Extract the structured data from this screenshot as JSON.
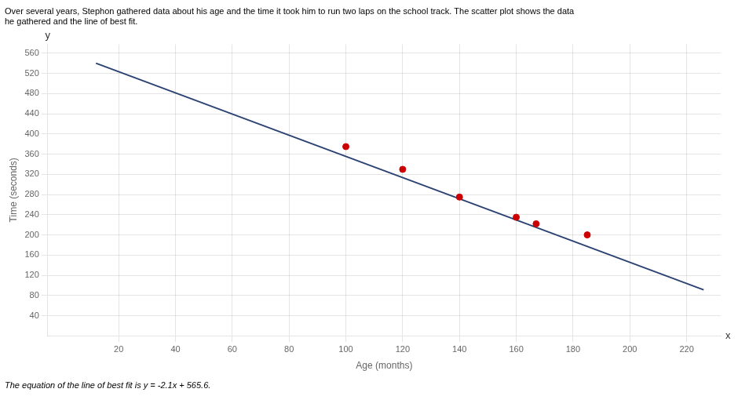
{
  "chart_data": {
    "type": "scatter",
    "title": [
      "Over several years, Stephon gathered data about his age and the time it took him to run two laps on the school track. The scatter plot shows the data",
      "he gathered and the line of best fit."
    ],
    "annotations": [
      {
        "text": "The equation of the line of best fit is y = -2.1x + 565.6."
      },
      {
        "text": "y",
        "axis": "y"
      },
      {
        "text": "x",
        "axis": "x"
      }
    ],
    "xlabel": "Age (months)",
    "ylabel": "Time (seconds)",
    "series": [
      {
        "type": "scatter",
        "color": "#cc0000",
        "marker": "circle",
        "x": [
          100,
          120,
          140,
          160,
          167,
          185
        ],
        "values": [
          375,
          330,
          275,
          235,
          222,
          200
        ]
      },
      {
        "type": "line",
        "color": "#2c4272",
        "line_style": "solid",
        "x": [
          12,
          226
        ],
        "values": [
          540.4,
          91
        ]
      }
    ],
    "xlim": [
      -5,
      232
    ],
    "ylim": [
      0,
      578
    ],
    "xticks": [
      20,
      40,
      60,
      80,
      100,
      120,
      140,
      160,
      180,
      200,
      220
    ],
    "yticks": [
      40,
      80,
      120,
      160,
      200,
      240,
      280,
      320,
      360,
      400,
      440,
      480,
      520,
      560
    ],
    "grid": true,
    "legend": false
  }
}
